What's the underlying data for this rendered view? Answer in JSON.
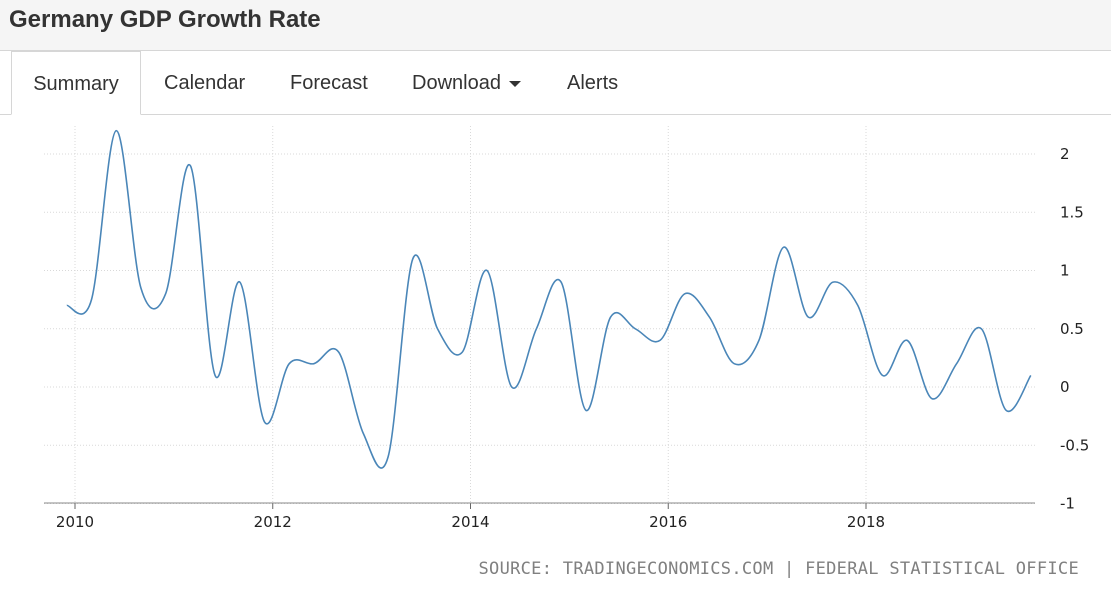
{
  "page": {
    "title": "Germany GDP Growth Rate"
  },
  "tabs": [
    {
      "label": "Summary",
      "active": true
    },
    {
      "label": "Calendar"
    },
    {
      "label": "Forecast"
    },
    {
      "label": "Download",
      "has_dropdown": true
    },
    {
      "label": "Alerts"
    }
  ],
  "source_text": "SOURCE: TRADINGECONOMICS.COM | FEDERAL STATISTICAL OFFICE",
  "colors": {
    "line": "#4a86b8",
    "grid": "#d9d9d9",
    "header_bg": "#f5f5f5",
    "text": "#333333",
    "source": "#808080"
  },
  "chart_data": {
    "type": "line",
    "title": "",
    "xlabel": "",
    "ylabel": "",
    "y_axis_side": "right",
    "ylim": [
      -1,
      2.25
    ],
    "yticks": [
      2,
      1.5,
      1,
      0.5,
      0,
      -0.5,
      -1
    ],
    "ytick_labels": [
      "2",
      "1.5",
      "1",
      "0.5",
      "0",
      "-0.5",
      "-1"
    ],
    "xticks": [
      2010,
      2012,
      2014,
      2016,
      2018
    ],
    "xtick_labels": [
      "2010",
      "2012",
      "2014",
      "2016",
      "2018"
    ],
    "grid": "dotted",
    "legend": "none",
    "series": [
      {
        "x": [
          "2009-12",
          "2010-03",
          "2010-06",
          "2010-09",
          "2010-12",
          "2011-03",
          "2011-06",
          "2011-09",
          "2011-12",
          "2012-03",
          "2012-06",
          "2012-09",
          "2012-12",
          "2013-03",
          "2013-06",
          "2013-09",
          "2013-12",
          "2014-03",
          "2014-06",
          "2014-09",
          "2014-12",
          "2015-03",
          "2015-06",
          "2015-09",
          "2015-12",
          "2016-03",
          "2016-06",
          "2016-09",
          "2016-12",
          "2017-03",
          "2017-06",
          "2017-09",
          "2017-12",
          "2018-03",
          "2018-06",
          "2018-09",
          "2018-12",
          "2019-03",
          "2019-06",
          "2019-09"
        ],
        "values": [
          0.7,
          0.75,
          2.2,
          0.85,
          0.8,
          1.9,
          0.1,
          0.9,
          -0.3,
          0.2,
          0.2,
          0.3,
          -0.4,
          -0.6,
          1.1,
          0.5,
          0.3,
          1.0,
          0.0,
          0.5,
          0.9,
          -0.2,
          0.6,
          0.5,
          0.4,
          0.8,
          0.6,
          0.2,
          0.4,
          1.2,
          0.6,
          0.9,
          0.7,
          0.1,
          0.4,
          -0.1,
          0.2,
          0.5,
          -0.2,
          0.1
        ]
      }
    ]
  }
}
